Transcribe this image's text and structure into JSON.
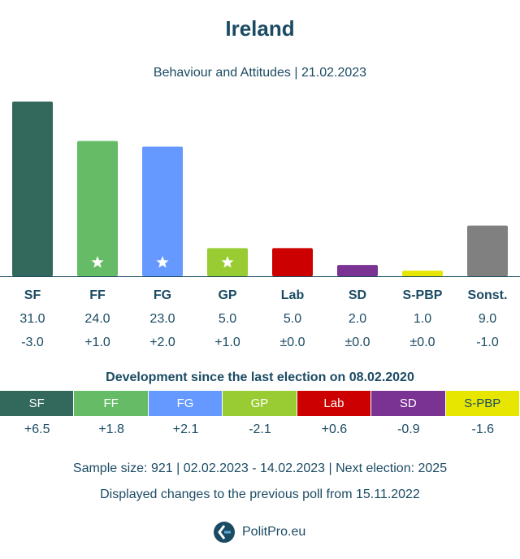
{
  "header": {
    "title": "Ireland",
    "subtitle": "Behaviour and Attitudes | 21.02.2023"
  },
  "chart_data": {
    "type": "bar",
    "categories": [
      "SF",
      "FF",
      "FG",
      "GP",
      "Lab",
      "SD",
      "S-PBP",
      "Sonst."
    ],
    "values": [
      31.0,
      24.0,
      23.0,
      5.0,
      5.0,
      2.0,
      1.0,
      9.0
    ],
    "value_labels": [
      "31.0",
      "24.0",
      "23.0",
      "5.0",
      "5.0",
      "2.0",
      "1.0",
      "9.0"
    ],
    "changes": [
      "-3.0",
      "+1.0",
      "+2.0",
      "+1.0",
      "±0.0",
      "±0.0",
      "±0.0",
      "-1.0"
    ],
    "colors": [
      "#33685c",
      "#66bb66",
      "#6699ff",
      "#99cc33",
      "#cc0000",
      "#7a3293",
      "#e6e600",
      "#808080"
    ],
    "government_star": [
      false,
      true,
      true,
      true,
      false,
      false,
      false,
      false
    ],
    "ylim": [
      0,
      31
    ],
    "xlabel": "",
    "ylabel": ""
  },
  "development": {
    "title": "Development since the last election on 08.02.2020",
    "parties": [
      "SF",
      "FF",
      "FG",
      "GP",
      "Lab",
      "SD",
      "S-PBP"
    ],
    "changes": [
      "+6.5",
      "+1.8",
      "+2.1",
      "-2.1",
      "+0.6",
      "-0.9",
      "-1.6"
    ],
    "colors": [
      "#33685c",
      "#66bb66",
      "#6699ff",
      "#99cc33",
      "#cc0000",
      "#7a3293",
      "#e6e600"
    ],
    "label_colors": [
      "#ffffff",
      "#ffffff",
      "#ffffff",
      "#ffffff",
      "#ffffff",
      "#ffffff",
      "#1b4b63"
    ]
  },
  "footer": {
    "sample": "Sample size: 921 | 02.02.2023 - 14.02.2023 | Next election: 2025",
    "changes_note": "Displayed changes to the previous poll from 15.11.2022",
    "brand": "PolitPro.eu"
  }
}
